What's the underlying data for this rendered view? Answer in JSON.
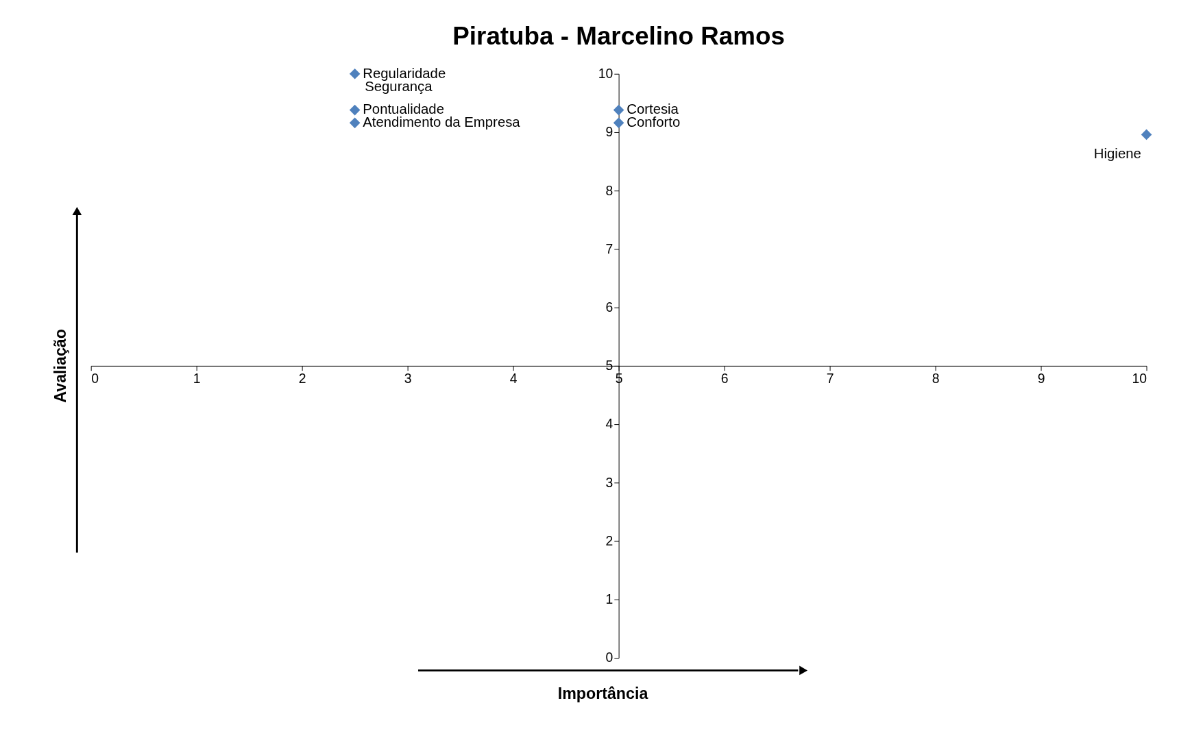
{
  "chart_data": {
    "type": "scatter",
    "title": "Piratuba - Marcelino Ramos",
    "xlabel": "Importância",
    "ylabel": "Avaliação",
    "series": [
      {
        "color": "#4f81bd",
        "x": [
          2.5,
          2.5,
          2.5,
          5,
          5,
          10
        ],
        "values": [
          10,
          9.38,
          9.16,
          9.38,
          9.16,
          8.96
        ]
      }
    ],
    "annotations": [
      {
        "text": "Regularidade",
        "x": 2.5,
        "y": 10
      },
      {
        "text": "Segurança",
        "x": 2.5,
        "y": 10
      },
      {
        "text": "Pontualidade",
        "x": 2.5,
        "y": 9.38
      },
      {
        "text": "Atendimento da Empresa",
        "x": 2.5,
        "y": 9.16
      },
      {
        "text": "Cortesia",
        "x": 5,
        "y": 9.38
      },
      {
        "text": "Conforto",
        "x": 5,
        "y": 9.16
      },
      {
        "text": "Higiene",
        "x": 10,
        "y": 8.96
      }
    ],
    "xlim": [
      0,
      10
    ],
    "ylim": [
      0,
      10
    ],
    "xticks": [
      0,
      1,
      2,
      3,
      4,
      5,
      6,
      7,
      8,
      9,
      10
    ],
    "yticks": [
      0,
      1,
      2,
      3,
      4,
      5,
      6,
      7,
      8,
      9,
      10
    ],
    "grid": false,
    "marker": "diamond"
  }
}
